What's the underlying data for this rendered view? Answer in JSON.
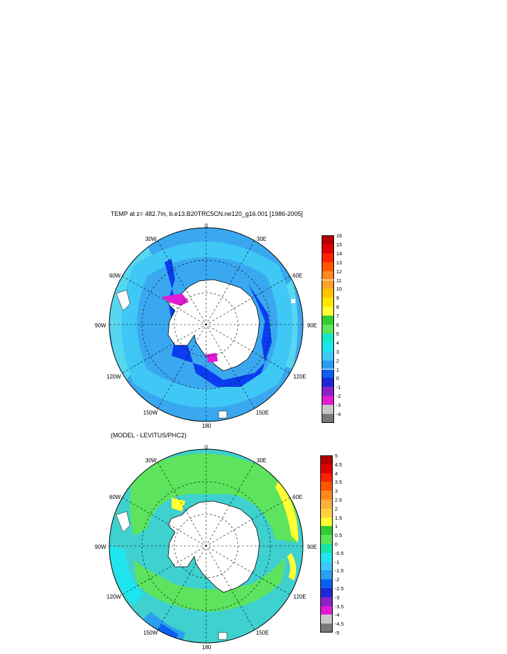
{
  "panels": [
    {
      "title": "TEMP at z= 482.7m, b.e13.B20TRC5CN.ne120_g16.001 [1986-2005]",
      "lon_labels": {
        "n": "0",
        "ne30": "30E",
        "ne60": "60E",
        "e": "90E",
        "se120": "120E",
        "se150": "150E",
        "s": "180",
        "sw150": "150W",
        "sw120": "120W",
        "w": "90W",
        "nw60": "60W",
        "nw30": "30W"
      },
      "colorbar_labels": [
        "16",
        "15",
        "14",
        "13",
        "12",
        "11",
        "10",
        "9",
        "8",
        "7",
        "6",
        "5",
        "4",
        "3",
        "2",
        "1",
        "0",
        "-1",
        "-2",
        "-3",
        "-4"
      ],
      "colorbar_colors": [
        "#b30000",
        "#e00000",
        "#ff2200",
        "#ff5500",
        "#ff8a1e",
        "#ffa02a",
        "#ffc300",
        "#ffe600",
        "#ffff33",
        "#33cc33",
        "#5de35d",
        "#17e6c8",
        "#1fe6ee",
        "#3fc8f5",
        "#2a9ff0",
        "#0a5ff0",
        "#1e28d8",
        "#8a24c8",
        "#e01cd2",
        "#c8c8c8",
        "#7a7a7a"
      ],
      "field": {
        "ocean_base": "#3aa8f0",
        "inner_ring": "#3fc8f5",
        "coast_ring": "#0a3cf0",
        "ice_pink": "#e01cd2",
        "outer_band": "#57d6ef"
      }
    },
    {
      "title": "(MODEL - LEVITUS/PHC2)",
      "lon_labels": {
        "n": "0",
        "ne30": "30E",
        "ne60": "60E",
        "e": "90E",
        "se120": "120E",
        "se150": "150E",
        "s": "180",
        "sw150": "150W",
        "sw120": "120W",
        "w": "90W",
        "nw60": "60W",
        "nw30": "30W"
      },
      "colorbar_labels": [
        "5",
        "4.5",
        "4",
        "3.5",
        "3",
        "2.5",
        "2",
        "1.5",
        "1",
        "0.5",
        "0",
        "-0.5",
        "-1",
        "-1.5",
        "-2",
        "-2.5",
        "-3",
        "-3.5",
        "-4",
        "-4.5",
        "-5"
      ],
      "colorbar_colors": [
        "#b30000",
        "#e00000",
        "#ff2200",
        "#ff5500",
        "#ff8a1e",
        "#ffb040",
        "#ffd23c",
        "#ffff33",
        "#33cc33",
        "#5de35d",
        "#17e6a8",
        "#1fe6ee",
        "#3fc8f5",
        "#2a9ff0",
        "#0a5ff0",
        "#1e28d8",
        "#8a24c8",
        "#e01cd2",
        "#c8c8c8",
        "#7a7a7a"
      ],
      "field": {
        "ocean_base": "#3fd0d0",
        "green": "#5de35d",
        "yellow": "#ffff33",
        "cyan": "#1fe6ee",
        "blue": "#2a9ff0"
      }
    }
  ]
}
